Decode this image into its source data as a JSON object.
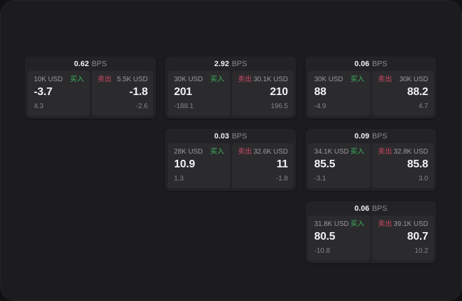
{
  "labels": {
    "bps_suffix": "BPS",
    "buy": "买入",
    "sell": "卖出"
  },
  "colors": {
    "buy": "#3eb45e",
    "sell": "#cc4a64",
    "card_bg": "#232325",
    "panel_bg": "#2b2b2d",
    "page_bg": "#1c1c1e"
  },
  "cards": [
    {
      "col": 1,
      "row": 1,
      "bps": "0.62",
      "buy": {
        "amount": "10K USD",
        "value": "-3.7",
        "sub": "4.3"
      },
      "sell": {
        "amount": "5.5K USD",
        "value": "-1.8",
        "sub": "-2.6"
      }
    },
    {
      "col": 2,
      "row": 1,
      "bps": "2.92",
      "buy": {
        "amount": "30K USD",
        "value": "201",
        "sub": "-188.1"
      },
      "sell": {
        "amount": "30.1K USD",
        "value": "210",
        "sub": "196.5"
      }
    },
    {
      "col": 3,
      "row": 1,
      "bps": "0.06",
      "buy": {
        "amount": "30K USD",
        "value": "88",
        "sub": "-4.9"
      },
      "sell": {
        "amount": "30K USD",
        "value": "88.2",
        "sub": "4.7"
      }
    },
    {
      "col": 2,
      "row": 2,
      "bps": "0.03",
      "buy": {
        "amount": "28K USD",
        "value": "10.9",
        "sub": "1.3"
      },
      "sell": {
        "amount": "32.6K USD",
        "value": "11",
        "sub": "-1.8"
      }
    },
    {
      "col": 3,
      "row": 2,
      "bps": "0.09",
      "buy": {
        "amount": "34.1K USD",
        "value": "85.5",
        "sub": "-3.1"
      },
      "sell": {
        "amount": "32.8K USD",
        "value": "85.8",
        "sub": "3.0"
      }
    },
    {
      "col": 3,
      "row": 3,
      "bps": "0.06",
      "buy": {
        "amount": "31.8K USD",
        "value": "80.5",
        "sub": "-10.8"
      },
      "sell": {
        "amount": "39.1K USD",
        "value": "80.7",
        "sub": "10.2"
      }
    }
  ]
}
